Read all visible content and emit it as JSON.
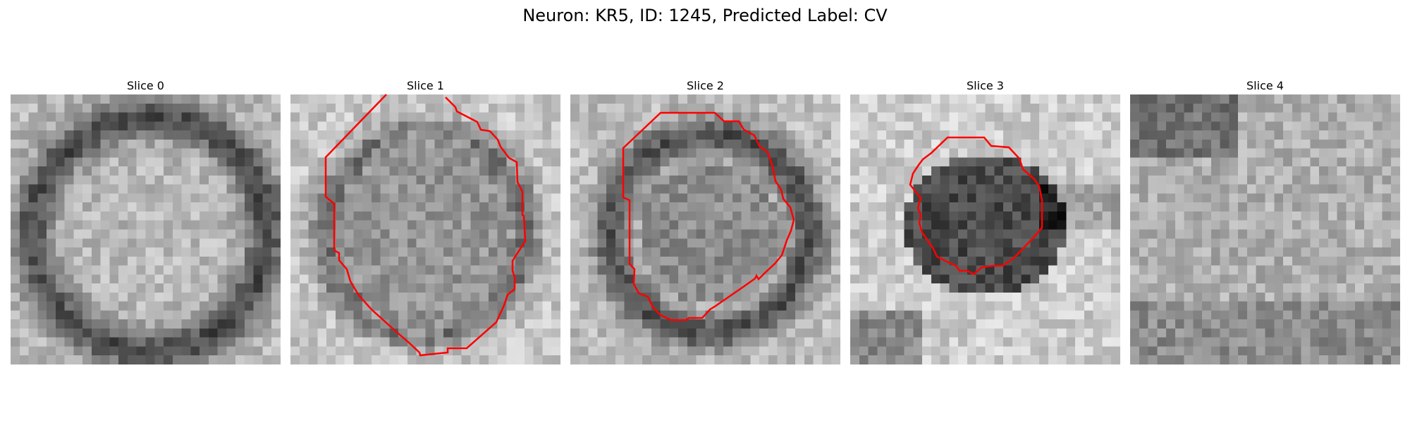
{
  "figure": {
    "title": "Neuron: KR5, ID: 1245, Predicted Label: CV"
  },
  "slices": [
    {
      "title": "Slice 0",
      "has_contour": false
    },
    {
      "title": "Slice 1",
      "has_contour": true
    },
    {
      "title": "Slice 2",
      "has_contour": true
    },
    {
      "title": "Slice 3",
      "has_contour": true
    },
    {
      "title": "Slice 4",
      "has_contour": false
    }
  ],
  "colors": {
    "contour": "#ff0000",
    "background": "#ffffff"
  },
  "image": {
    "colormap": "gray",
    "grid": "noisy grayscale micrograph tiles"
  }
}
